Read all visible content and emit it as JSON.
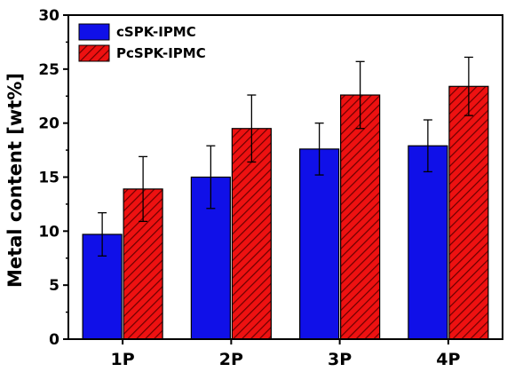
{
  "chart_data": {
    "type": "bar",
    "categories": [
      "1P",
      "2P",
      "3P",
      "4P"
    ],
    "ylabel": "Metal content [wt%]",
    "xlabel": "",
    "ylim": [
      0,
      30
    ],
    "yticks": [
      0,
      5,
      10,
      15,
      20,
      25,
      30
    ],
    "grid": false,
    "legend_position": "top-left",
    "series": [
      {
        "name": "cSPK-IPMC",
        "color": "#1010e8",
        "pattern": "solid",
        "values": [
          9.7,
          15.0,
          17.6,
          17.9
        ],
        "errors": [
          2.0,
          2.9,
          2.4,
          2.4
        ]
      },
      {
        "name": "PcSPK-IPMC",
        "color": "#ee1111",
        "pattern": "hatched",
        "values": [
          13.9,
          19.5,
          22.6,
          23.4
        ],
        "errors": [
          3.0,
          3.1,
          3.1,
          2.7
        ]
      }
    ]
  }
}
